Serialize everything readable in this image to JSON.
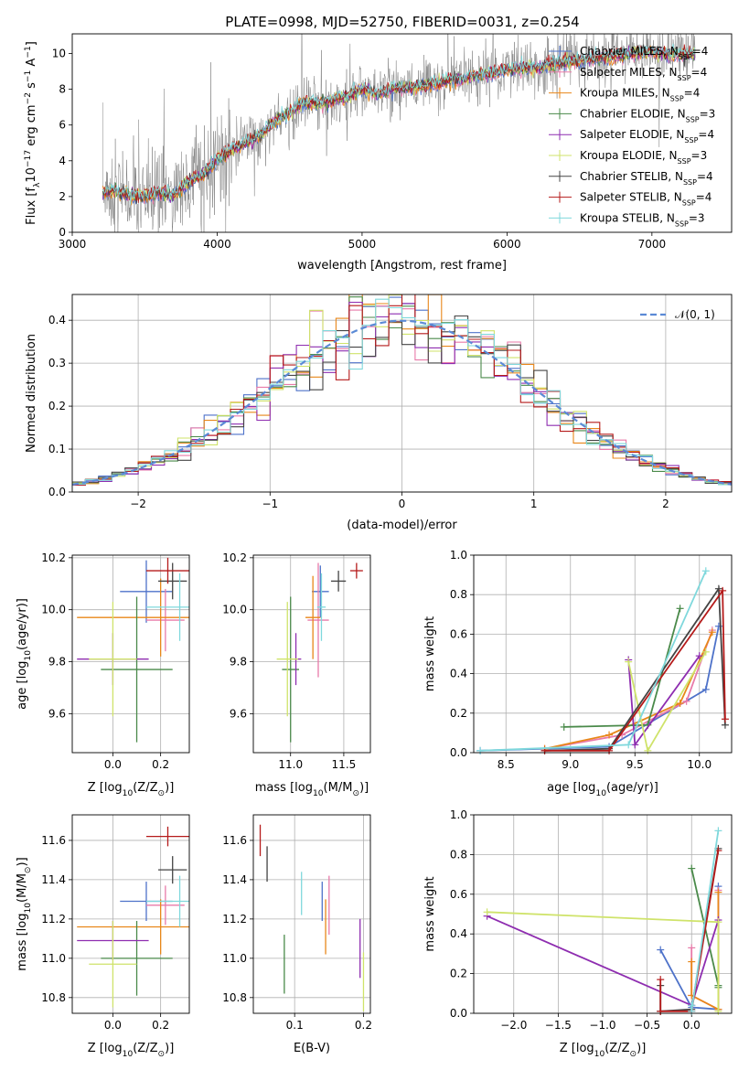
{
  "figure_title": "PLATE=0998, MJD=52750, FIBERID=0031, z=0.254",
  "colors": {
    "Chabrier MILES": "#4e72c9",
    "Salpeter MILES": "#e87aa9",
    "Kroupa MILES": "#e8871a",
    "Chabrier ELODIE": "#4a8a4a",
    "Salpeter ELODIE": "#8e2db0",
    "Kroupa ELODIE": "#cfe36a",
    "Chabrier STELIB": "#444444",
    "Salpeter STELIB": "#b51a1a",
    "Kroupa STELIB": "#7fd8dc",
    "data": "#808080",
    "normal": "#5b8ad6"
  },
  "chart_data": [
    {
      "id": "spectrum",
      "type": "line",
      "title": "PLATE=0998, MJD=52750, FIBERID=0031, z=0.254",
      "xlabel": "wavelength [Angstrom, rest frame]",
      "ylabel": "Flux [f",
      "ylabel_sub": "λ",
      "ylabel_rest": "10",
      "ylabel_sup1": "−17",
      "ylabel_tail": " erg cm",
      "ylabel_sup2": "−2",
      "ylabel_tail2": " s",
      "ylabel_sup3": "−1",
      "ylabel_tail3": " A",
      "ylabel_sup4": "−1",
      "ylabel_end": "]",
      "xlim": [
        3000,
        7550
      ],
      "ylim": [
        0,
        11.1
      ],
      "xticks": [
        "3000",
        "4000",
        "5000",
        "6000",
        "7000"
      ],
      "yticks": [
        "0",
        "2",
        "4",
        "6",
        "8",
        "10"
      ],
      "legend_position": "top-right",
      "legend": [
        {
          "name": "Chabrier MILES",
          "nssp": "4"
        },
        {
          "name": "Salpeter MILES",
          "nssp": "4"
        },
        {
          "name": "Kroupa MILES",
          "nssp": "4"
        },
        {
          "name": "Chabrier ELODIE",
          "nssp": "3"
        },
        {
          "name": "Salpeter ELODIE",
          "nssp": "4"
        },
        {
          "name": "Kroupa ELODIE",
          "nssp": "3"
        },
        {
          "name": "Chabrier STELIB",
          "nssp": "4"
        },
        {
          "name": "Salpeter STELIB",
          "nssp": "4"
        },
        {
          "name": "Kroupa STELIB",
          "nssp": "3"
        }
      ],
      "legend_sub": "SSP",
      "model_continuum": {
        "x": [
          3210,
          3300,
          3400,
          3500,
          3600,
          3700,
          3800,
          3900,
          4000,
          4100,
          4200,
          4300,
          4400,
          4500,
          4600,
          4700,
          4800,
          4900,
          5000,
          5100,
          5200,
          5300,
          5400,
          5500,
          5600,
          5700,
          5800,
          5900,
          6000,
          6100,
          6200,
          6300,
          6400,
          6500,
          6600,
          6700,
          6800,
          6900,
          7000,
          7100,
          7200,
          7300
        ],
        "y": [
          2.2,
          2.3,
          2.0,
          2.0,
          2.2,
          2.1,
          2.8,
          3.2,
          4.1,
          4.6,
          5.0,
          5.4,
          6.2,
          6.7,
          7.3,
          7.2,
          7.4,
          7.6,
          8.0,
          7.7,
          8.0,
          8.1,
          8.2,
          8.3,
          8.5,
          8.6,
          8.8,
          8.9,
          9.1,
          9.2,
          9.2,
          9.4,
          9.5,
          9.6,
          9.7,
          9.8,
          9.9,
          10.0,
          10.1,
          10.0,
          9.9,
          10.0
        ]
      }
    },
    {
      "id": "residuals",
      "type": "histogram",
      "xlabel": "(data-model)/error",
      "ylabel": "Normed distribution",
      "xlim": [
        -2.5,
        2.5
      ],
      "ylim": [
        0,
        0.46
      ],
      "xticks": [
        "−2",
        "−1",
        "0",
        "1",
        "2"
      ],
      "yticks": [
        "0.0",
        "0.1",
        "0.2",
        "0.3",
        "0.4"
      ],
      "legend": "𝒩(0, 1)",
      "legend_position": "top-right",
      "bin_width": 0.1
    },
    {
      "id": "age_vs_Z",
      "type": "errorbar",
      "xlabel": "Z [log",
      "xlabel_sub": "10",
      "xlabel_rest": "(Z/Z",
      "xlabel_sub2": "⊙",
      "xlabel_end": ")]",
      "ylabel": "age  [log",
      "ylabel_sub": "10",
      "ylabel_end": "(age/yr)]",
      "xlim": [
        -0.17,
        0.32
      ],
      "ylim": [
        9.45,
        10.21
      ],
      "xticks": [
        "0.0",
        "0.2"
      ],
      "yticks": [
        "9.6",
        "9.8",
        "10.0",
        "10.2"
      ],
      "points": [
        {
          "model": "Chabrier MILES",
          "x": 0.14,
          "xerr": 0.11,
          "y": 10.07,
          "yerr": 0.12
        },
        {
          "model": "Salpeter MILES",
          "x": 0.22,
          "xerr": 0.08,
          "y": 9.96,
          "yerr": 0.12
        },
        {
          "model": "Kroupa MILES",
          "x": 0.2,
          "xerr": 0.35,
          "y": 9.97,
          "yerr": 0.15
        },
        {
          "model": "Chabrier ELODIE",
          "x": 0.1,
          "xerr": 0.15,
          "y": 9.77,
          "yerr": 0.28
        },
        {
          "model": "Salpeter ELODIE",
          "x": 0.0,
          "xerr": 0.15,
          "y": 9.81,
          "yerr": 0.1
        },
        {
          "model": "Kroupa ELODIE",
          "x": 0.0,
          "xerr": 0.1,
          "y": 9.81,
          "yerr": 0.22
        },
        {
          "model": "Chabrier STELIB",
          "x": 0.25,
          "xerr": 0.06,
          "y": 10.11,
          "yerr": 0.07
        },
        {
          "model": "Salpeter STELIB",
          "x": 0.23,
          "xerr": 0.09,
          "y": 10.15,
          "yerr": 0.05
        },
        {
          "model": "Kroupa STELIB",
          "x": 0.28,
          "xerr": 0.14,
          "y": 10.01,
          "yerr": 0.13
        }
      ]
    },
    {
      "id": "age_vs_mass",
      "type": "errorbar",
      "xlabel": "mass [log",
      "xlabel_sub": "10",
      "xlabel_rest": "(M/M",
      "xlabel_sub2": "⊙",
      "xlabel_end": ")]",
      "xlim": [
        10.65,
        11.75
      ],
      "ylim": [
        9.45,
        10.21
      ],
      "xticks": [
        "11.0",
        "11.5"
      ],
      "yticks": [
        "9.6",
        "9.8",
        "10.0",
        "10.2"
      ],
      "points": [
        {
          "model": "Chabrier MILES",
          "x": 11.28,
          "xerr": 0.08,
          "y": 10.07,
          "yerr": 0.1
        },
        {
          "model": "Salpeter MILES",
          "x": 11.26,
          "xerr": 0.1,
          "y": 9.96,
          "yerr": 0.22
        },
        {
          "model": "Kroupa MILES",
          "x": 11.21,
          "xerr": 0.07,
          "y": 9.97,
          "yerr": 0.16
        },
        {
          "model": "Chabrier ELODIE",
          "x": 11.0,
          "xerr": 0.08,
          "y": 9.77,
          "yerr": 0.28
        },
        {
          "model": "Salpeter ELODIE",
          "x": 11.05,
          "xerr": 0.05,
          "y": 9.81,
          "yerr": 0.1
        },
        {
          "model": "Kroupa ELODIE",
          "x": 10.97,
          "xerr": 0.1,
          "y": 9.81,
          "yerr": 0.22
        },
        {
          "model": "Chabrier STELIB",
          "x": 11.45,
          "xerr": 0.07,
          "y": 10.11,
          "yerr": 0.04
        },
        {
          "model": "Salpeter STELIB",
          "x": 11.62,
          "xerr": 0.06,
          "y": 10.15,
          "yerr": 0.03
        },
        {
          "model": "Kroupa STELIB",
          "x": 11.29,
          "xerr": 0.04,
          "y": 10.01,
          "yerr": 0.13
        }
      ]
    },
    {
      "id": "mass_weight_vs_age",
      "type": "line",
      "xlabel": "age  [log",
      "xlabel_sub": "10",
      "xlabel_end": "(age/yr)]",
      "ylabel": "mass weight",
      "xlim": [
        8.25,
        10.25
      ],
      "ylim": [
        0,
        1.0
      ],
      "xticks": [
        "8.5",
        "9.0",
        "9.5",
        "10.0"
      ],
      "yticks": [
        "0.0",
        "0.2",
        "0.4",
        "0.6",
        "0.8",
        "1.0"
      ],
      "series": [
        {
          "model": "Chabrier MILES",
          "x": [
            8.3,
            9.3,
            10.05,
            10.15
          ],
          "y": [
            0.01,
            0.03,
            0.32,
            0.64
          ]
        },
        {
          "model": "Salpeter MILES",
          "x": [
            8.8,
            9.4,
            9.9,
            10.1
          ],
          "y": [
            0.02,
            0.09,
            0.26,
            0.62
          ]
        },
        {
          "model": "Kroupa MILES",
          "x": [
            8.8,
            9.3,
            9.85,
            10.1
          ],
          "y": [
            0.02,
            0.09,
            0.25,
            0.61
          ]
        },
        {
          "model": "Chabrier ELODIE",
          "x": [
            8.95,
            9.6,
            9.85
          ],
          "y": [
            0.13,
            0.14,
            0.73
          ]
        },
        {
          "model": "Salpeter ELODIE",
          "x": [
            9.45,
            9.5,
            10.0
          ],
          "y": [
            0.47,
            0.04,
            0.49
          ]
        },
        {
          "model": "Kroupa ELODIE",
          "x": [
            9.45,
            9.6,
            10.05
          ],
          "y": [
            0.46,
            0.01,
            0.51
          ]
        },
        {
          "model": "Chabrier STELIB",
          "x": [
            8.8,
            9.3,
            10.15,
            10.2
          ],
          "y": [
            0.01,
            0.02,
            0.83,
            0.14
          ]
        },
        {
          "model": "Salpeter STELIB",
          "x": [
            8.8,
            9.3,
            10.18,
            10.2
          ],
          "y": [
            0.01,
            0.01,
            0.82,
            0.17
          ]
        },
        {
          "model": "Kroupa STELIB",
          "x": [
            8.3,
            9.45,
            10.05
          ],
          "y": [
            0.01,
            0.04,
            0.92
          ]
        }
      ]
    },
    {
      "id": "mass_vs_Z",
      "type": "errorbar",
      "xlabel": "Z [log",
      "xlabel_sub": "10",
      "xlabel_rest": "(Z/Z",
      "xlabel_sub2": "⊙",
      "xlabel_end": ")]",
      "ylabel": "mass [log",
      "ylabel_sub": "10",
      "ylabel_rest": "(M/M",
      "ylabel_sub2": "⊙",
      "ylabel_end": ")]",
      "xlim": [
        -0.17,
        0.32
      ],
      "ylim": [
        10.72,
        11.73
      ],
      "xticks": [
        "0.0",
        "0.2"
      ],
      "yticks": [
        "10.8",
        "11.0",
        "11.2",
        "11.4",
        "11.6"
      ],
      "points": [
        {
          "model": "Chabrier MILES",
          "x": 0.14,
          "xerr": 0.11,
          "y": 11.29,
          "yerr": 0.1
        },
        {
          "model": "Salpeter MILES",
          "x": 0.22,
          "xerr": 0.08,
          "y": 11.27,
          "yerr": 0.1
        },
        {
          "model": "Kroupa MILES",
          "x": 0.2,
          "xerr": 0.35,
          "y": 11.16,
          "yerr": 0.14
        },
        {
          "model": "Chabrier ELODIE",
          "x": 0.1,
          "xerr": 0.15,
          "y": 11.0,
          "yerr": 0.19
        },
        {
          "model": "Salpeter ELODIE",
          "x": 0.0,
          "xerr": 0.15,
          "y": 11.09,
          "yerr": 0.1
        },
        {
          "model": "Kroupa ELODIE",
          "x": 0.0,
          "xerr": 0.1,
          "y": 10.97,
          "yerr": 0.22
        },
        {
          "model": "Chabrier STELIB",
          "x": 0.25,
          "xerr": 0.06,
          "y": 11.45,
          "yerr": 0.07
        },
        {
          "model": "Salpeter STELIB",
          "x": 0.23,
          "xerr": 0.09,
          "y": 11.62,
          "yerr": 0.05
        },
        {
          "model": "Kroupa STELIB",
          "x": 0.28,
          "xerr": 0.14,
          "y": 11.29,
          "yerr": 0.13
        }
      ]
    },
    {
      "id": "mass_vs_ebv",
      "type": "errorbar",
      "xlabel": "E(B-V)",
      "xlim": [
        0.04,
        0.21
      ],
      "ylim": [
        10.72,
        11.73
      ],
      "xticks": [
        "0.1",
        "0.2"
      ],
      "yticks": [
        "10.8",
        "11.0",
        "11.2",
        "11.4",
        "11.6"
      ],
      "points": [
        {
          "model": "Chabrier MILES",
          "x": 0.14,
          "xerr": 0,
          "y": 11.29,
          "yerr": 0.1
        },
        {
          "model": "Salpeter MILES",
          "x": 0.15,
          "xerr": 0,
          "y": 11.27,
          "yerr": 0.15
        },
        {
          "model": "Kroupa MILES",
          "x": 0.145,
          "xerr": 0,
          "y": 11.16,
          "yerr": 0.14
        },
        {
          "model": "Chabrier ELODIE",
          "x": 0.085,
          "xerr": 0,
          "y": 10.97,
          "yerr": 0.15
        },
        {
          "model": "Salpeter ELODIE",
          "x": 0.195,
          "xerr": 0,
          "y": 11.05,
          "yerr": 0.15
        },
        {
          "model": "Kroupa ELODIE",
          "x": 0.2,
          "xerr": 0,
          "y": 10.88,
          "yerr": 0.15
        },
        {
          "model": "Chabrier STELIB",
          "x": 0.06,
          "xerr": 0,
          "y": 11.48,
          "yerr": 0.09
        },
        {
          "model": "Salpeter STELIB",
          "x": 0.05,
          "xerr": 0,
          "y": 11.6,
          "yerr": 0.08
        },
        {
          "model": "Kroupa STELIB",
          "x": 0.11,
          "xerr": 0,
          "y": 11.33,
          "yerr": 0.11
        }
      ]
    },
    {
      "id": "mass_weight_vs_Z",
      "type": "line",
      "xlabel": "Z [log",
      "xlabel_sub": "10",
      "xlabel_rest": "(Z/Z",
      "xlabel_sub2": "⊙",
      "xlabel_end": ")]",
      "ylabel": "mass weight",
      "xlim": [
        -2.45,
        0.45
      ],
      "ylim": [
        0,
        1.0
      ],
      "xticks": [
        "−2.0",
        "−1.5",
        "−1.0",
        "−0.5",
        "0.0"
      ],
      "yticks": [
        "0.0",
        "0.2",
        "0.4",
        "0.6",
        "0.8",
        "1.0"
      ],
      "series": [
        {
          "model": "Chabrier MILES",
          "x": [
            -0.35,
            0.0,
            0.3,
            0.3
          ],
          "y": [
            0.32,
            0.03,
            0.02,
            0.64
          ]
        },
        {
          "model": "Salpeter MILES",
          "x": [
            0.0,
            0.0,
            0.3,
            0.3
          ],
          "y": [
            0.33,
            0.09,
            0.02,
            0.62
          ]
        },
        {
          "model": "Kroupa MILES",
          "x": [
            0.0,
            0.0,
            0.3,
            0.3
          ],
          "y": [
            0.26,
            0.09,
            0.02,
            0.61
          ]
        },
        {
          "model": "Chabrier ELODIE",
          "x": [
            0.0,
            0.3,
            0.3
          ],
          "y": [
            0.73,
            0.14,
            0.13
          ]
        },
        {
          "model": "Salpeter ELODIE",
          "x": [
            -2.3,
            0.0,
            0.3
          ],
          "y": [
            0.49,
            0.04,
            0.47
          ]
        },
        {
          "model": "Kroupa ELODIE",
          "x": [
            -2.3,
            0.3,
            0.3
          ],
          "y": [
            0.51,
            0.46,
            0.01
          ]
        },
        {
          "model": "Chabrier STELIB",
          "x": [
            -0.35,
            -0.35,
            0.0,
            0.3
          ],
          "y": [
            0.14,
            0.01,
            0.02,
            0.83
          ]
        },
        {
          "model": "Salpeter STELIB",
          "x": [
            -0.35,
            -0.35,
            0.0,
            0.3
          ],
          "y": [
            0.17,
            0.01,
            0.01,
            0.82
          ]
        },
        {
          "model": "Kroupa STELIB",
          "x": [
            0.0,
            0.0,
            0.3
          ],
          "y": [
            0.04,
            0.01,
            0.92
          ]
        }
      ]
    }
  ]
}
